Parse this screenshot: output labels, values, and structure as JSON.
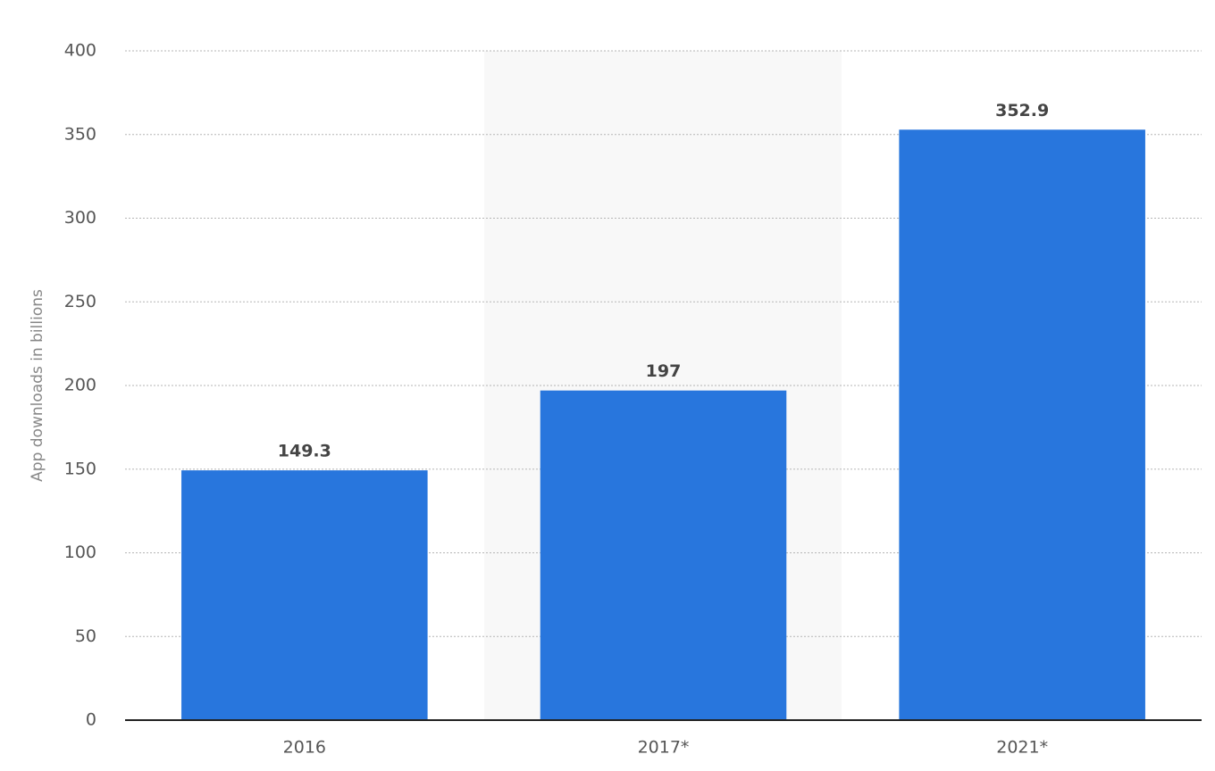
{
  "chart_data": {
    "type": "bar",
    "y_axis_label": "App downloads in billions",
    "categories": [
      "2016",
      "2017*",
      "2021*"
    ],
    "values": [
      149.3,
      197,
      352.9
    ],
    "color": "#2876dd",
    "ylim": [
      0,
      400
    ],
    "yticks": [
      0,
      50,
      100,
      150,
      200,
      250,
      300,
      350,
      400
    ],
    "grid": true
  }
}
